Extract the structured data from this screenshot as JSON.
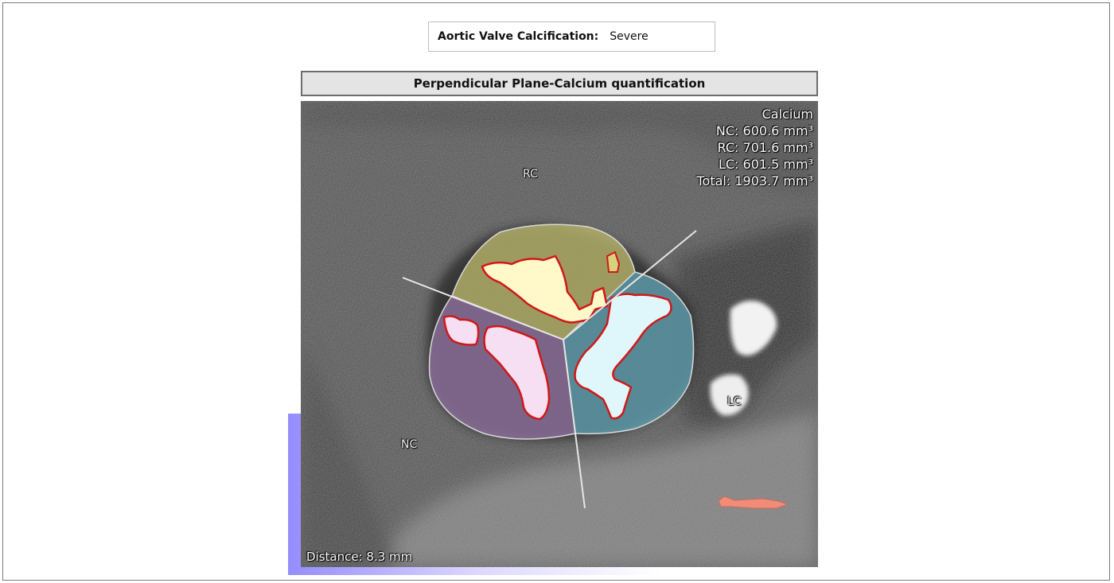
{
  "severity": {
    "label": "Aortic Valve Calcification:",
    "value": "Severe"
  },
  "panel": {
    "title": "Perpendicular Plane-Calcium quantification"
  },
  "readout": {
    "title": "Calcium",
    "nc": "NC: 600.6 mm³",
    "rc": "RC: 701.6 mm³",
    "lc": "LC: 601.5 mm³",
    "total": "Total: 1903.7 mm³"
  },
  "cusps": {
    "rc": "RC",
    "nc": "NC",
    "lc": "LC"
  },
  "distance": "Distance: 8.3 mm",
  "colors": {
    "rc_cusp": "#b8b46a",
    "nc_cusp": "#9a7aa8",
    "lc_cusp": "#6fa9b8",
    "calcium_outline": "#d01818",
    "rc_calcium": "#fffbd0",
    "nc_calcium": "#f6dff2",
    "lc_calcium": "#dff6fb",
    "marker": "#f08c78",
    "background": "#4a4a4a"
  }
}
